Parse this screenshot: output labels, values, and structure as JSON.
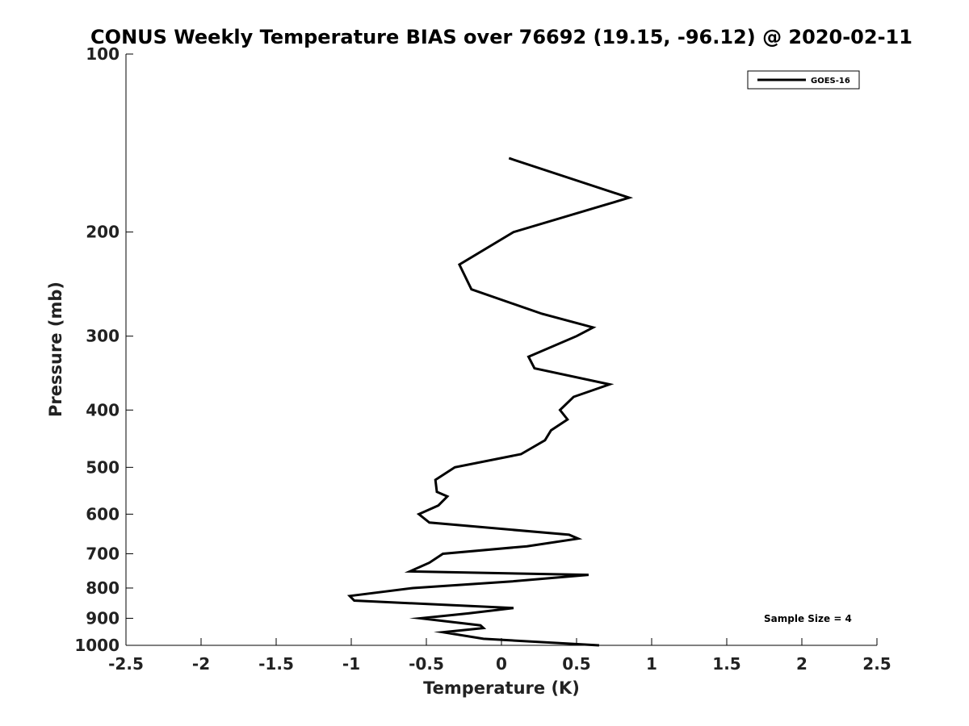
{
  "chart_data": {
    "type": "line",
    "title": "CONUS Weekly Temperature BIAS over 76692 (19.15, -96.12) @ 2020-02-11",
    "xlabel": "Temperature (K)",
    "ylabel": "Pressure (mb)",
    "xlim": [
      -2.5,
      2.5
    ],
    "ylim": [
      100,
      1000
    ],
    "y_scale": "log",
    "y_reversed": true,
    "xticks": [
      -2.5,
      -2,
      -1.5,
      -1,
      -0.5,
      0,
      0.5,
      1,
      1.5,
      2,
      2.5
    ],
    "xtick_labels": [
      "-2.5",
      "-2",
      "-1.5",
      "-1",
      "-0.5",
      "0",
      "0.5",
      "1",
      "1.5",
      "2",
      "2.5"
    ],
    "yticks": [
      100,
      200,
      300,
      400,
      500,
      600,
      700,
      800,
      900,
      1000
    ],
    "ytick_labels": [
      "100",
      "200",
      "300",
      "400",
      "500",
      "600",
      "700",
      "800",
      "900",
      "1000"
    ],
    "grid": false,
    "legend_position": "top-right",
    "annotation": "Sample Size = 4",
    "series": [
      {
        "name": "GOES-16",
        "color": "#000000",
        "points": [
          {
            "x": 0.05,
            "y": 150
          },
          {
            "x": 0.85,
            "y": 175
          },
          {
            "x": 0.08,
            "y": 200
          },
          {
            "x": -0.28,
            "y": 227
          },
          {
            "x": -0.2,
            "y": 250
          },
          {
            "x": 0.27,
            "y": 275
          },
          {
            "x": 0.61,
            "y": 290
          },
          {
            "x": 0.5,
            "y": 300
          },
          {
            "x": 0.18,
            "y": 325
          },
          {
            "x": 0.22,
            "y": 340
          },
          {
            "x": 0.72,
            "y": 362
          },
          {
            "x": 0.48,
            "y": 380
          },
          {
            "x": 0.39,
            "y": 400
          },
          {
            "x": 0.44,
            "y": 415
          },
          {
            "x": 0.33,
            "y": 433
          },
          {
            "x": 0.29,
            "y": 450
          },
          {
            "x": 0.13,
            "y": 475
          },
          {
            "x": -0.31,
            "y": 500
          },
          {
            "x": -0.44,
            "y": 525
          },
          {
            "x": -0.43,
            "y": 550
          },
          {
            "x": -0.36,
            "y": 560
          },
          {
            "x": -0.42,
            "y": 580
          },
          {
            "x": -0.55,
            "y": 600
          },
          {
            "x": -0.48,
            "y": 620
          },
          {
            "x": 0.45,
            "y": 650
          },
          {
            "x": 0.51,
            "y": 660
          },
          {
            "x": 0.17,
            "y": 680
          },
          {
            "x": -0.39,
            "y": 700
          },
          {
            "x": -0.48,
            "y": 725
          },
          {
            "x": -0.61,
            "y": 750
          },
          {
            "x": 0.58,
            "y": 760
          },
          {
            "x": 0.06,
            "y": 780
          },
          {
            "x": -0.59,
            "y": 800
          },
          {
            "x": -1.01,
            "y": 825
          },
          {
            "x": -0.98,
            "y": 840
          },
          {
            "x": 0.08,
            "y": 865
          },
          {
            "x": -0.22,
            "y": 883
          },
          {
            "x": -0.54,
            "y": 900
          },
          {
            "x": -0.14,
            "y": 925
          },
          {
            "x": -0.12,
            "y": 935
          },
          {
            "x": -0.39,
            "y": 950
          },
          {
            "x": -0.12,
            "y": 975
          },
          {
            "x": 0.65,
            "y": 1000
          }
        ]
      }
    ]
  }
}
